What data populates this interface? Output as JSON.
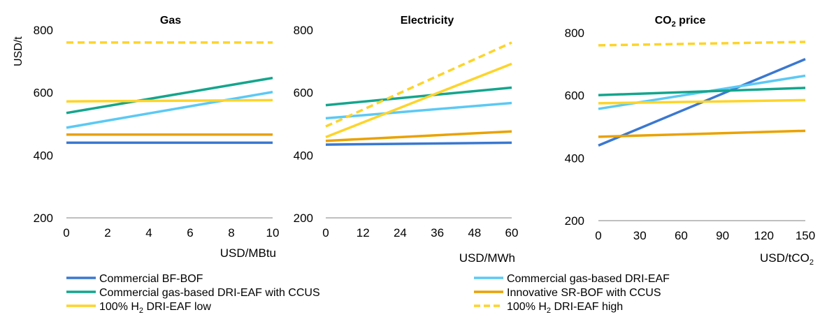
{
  "chart_data": [
    {
      "type": "line",
      "title": "Gas",
      "xlabel": "USD/MBtu",
      "ylabel": "USD/t",
      "x": [
        0,
        10
      ],
      "xticks": [
        "0",
        "2",
        "4",
        "6",
        "8",
        "10"
      ],
      "xlim": [
        0,
        10
      ],
      "yticks": [
        "200",
        "400",
        "600",
        "800"
      ],
      "ylim": [
        200,
        800
      ],
      "series": [
        {
          "name": "Commercial BF-BOF",
          "values": [
            440,
            440
          ]
        },
        {
          "name": "Commercial gas-based DRI-EAF",
          "values": [
            488,
            602
          ]
        },
        {
          "name": "Commercial gas-based DRI-EAF with CCUS",
          "values": [
            535,
            647
          ]
        },
        {
          "name": "Innovative SR-BOF with CCUS",
          "values": [
            466,
            466
          ]
        },
        {
          "name": "100% H2 DRI-EAF low",
          "values": [
            572,
            576
          ]
        },
        {
          "name": "100% H2 DRI-EAF high",
          "values": [
            760,
            760
          ]
        }
      ]
    },
    {
      "type": "line",
      "title": "Electricity",
      "xlabel": "USD/MWh",
      "ylabel": "",
      "x": [
        0,
        60
      ],
      "xticks": [
        "0",
        "12",
        "24",
        "36",
        "48",
        "60"
      ],
      "xlim": [
        0,
        60
      ],
      "yticks": [
        "200",
        "400",
        "600",
        "800"
      ],
      "ylim": [
        200,
        800
      ],
      "series": [
        {
          "name": "Commercial BF-BOF",
          "values": [
            434,
            440
          ]
        },
        {
          "name": "Commercial gas-based DRI-EAF",
          "values": [
            518,
            567
          ]
        },
        {
          "name": "Commercial gas-based DRI-EAF with CCUS",
          "values": [
            560,
            616
          ]
        },
        {
          "name": "Innovative SR-BOF with CCUS",
          "values": [
            446,
            476
          ]
        },
        {
          "name": "100% H2 DRI-EAF low",
          "values": [
            458,
            692
          ]
        },
        {
          "name": "100% H2 DRI-EAF high",
          "values": [
            492,
            760
          ]
        }
      ]
    },
    {
      "type": "line",
      "title_main": "CO",
      "title_sub": "2",
      "title_tail": " price",
      "xlabel_main": "USD/tCO",
      "xlabel_sub": "2",
      "ylabel": "",
      "x": [
        0,
        150
      ],
      "xticks": [
        "0",
        "30",
        "60",
        "90",
        "120",
        "150"
      ],
      "xlim": [
        0,
        150
      ],
      "yticks": [
        "200",
        "400",
        "600",
        "800"
      ],
      "ylim": [
        200,
        800
      ],
      "series": [
        {
          "name": "Commercial BF-BOF",
          "values": [
            440,
            716
          ]
        },
        {
          "name": "Commercial gas-based DRI-EAF",
          "values": [
            557,
            663
          ]
        },
        {
          "name": "Commercial gas-based DRI-EAF with CCUS",
          "values": [
            601,
            624
          ]
        },
        {
          "name": "Innovative SR-BOF with CCUS",
          "values": [
            468,
            487
          ]
        },
        {
          "name": "100% H2 DRI-EAF low",
          "values": [
            575,
            585
          ]
        },
        {
          "name": "100% H2 DRI-EAF high",
          "values": [
            760,
            771
          ]
        }
      ]
    }
  ],
  "legend": {
    "placement": "bottom",
    "items": [
      {
        "label": "Commercial BF-BOF",
        "color": "#3A78D0",
        "dash": false
      },
      {
        "label": "Commercial gas-based DRI-EAF",
        "color": "#5BC9F4",
        "dash": false
      },
      {
        "label": "Commercial gas-based DRI-EAF with CCUS",
        "color": "#14A58D",
        "dash": false
      },
      {
        "label": "Innovative SR-BOF with CCUS",
        "color": "#E9A200",
        "dash": false
      },
      {
        "label_main": "100% H",
        "label_sub": "2",
        "label_tail": " DRI-EAF low",
        "color": "#FDD42A",
        "dash": false
      },
      {
        "label_main": "100% H",
        "label_sub": "2",
        "label_tail": " DRI-EAF high",
        "color": "#FDD42A",
        "dash": true
      }
    ]
  },
  "series_colors": [
    "#3A78D0",
    "#5BC9F4",
    "#14A58D",
    "#E9A200",
    "#FDD42A",
    "#FDD42A"
  ],
  "series_dash": [
    false,
    false,
    false,
    false,
    false,
    true
  ],
  "axis_color": "#7f7f7f"
}
